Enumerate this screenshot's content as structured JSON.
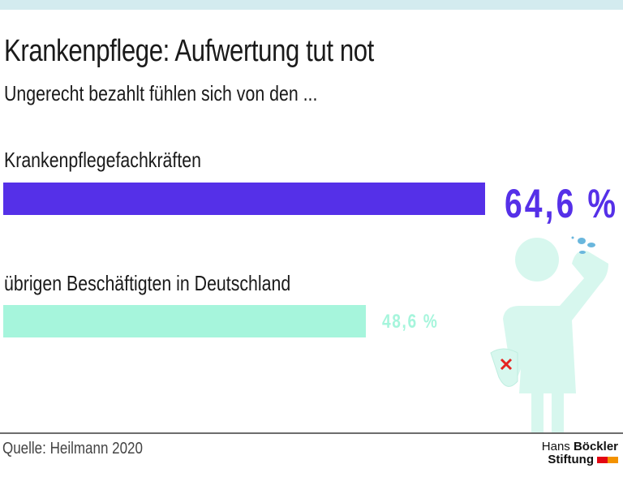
{
  "chart_data": {
    "type": "bar",
    "orientation": "horizontal",
    "title": "Krankenpflege: Aufwertung tut not",
    "subtitle": "Ungerecht bezahlt fühlen sich von den ...",
    "categories": [
      "Krankenpflegefachkräften",
      "übrigen Beschäftigten in Deutschland"
    ],
    "values": [
      64.6,
      48.6
    ],
    "value_labels": [
      "64,6 %",
      "48,6 %"
    ],
    "unit": "%",
    "colors": [
      "#5530e8",
      "#a6f5dc"
    ],
    "xlim": [
      0,
      100
    ],
    "grid": false
  },
  "source": "Quelle: Heilmann 2020",
  "logo": {
    "line1_light": "Hans",
    "line1_bold": "Böckler",
    "line2": "Stiftung"
  },
  "colors": {
    "top_stripe": "#d3ebef",
    "figure": "#d7f7ee",
    "cross": "#e52420",
    "drops": "#6ab7dd"
  },
  "illustration": "nurse-wiping-sweat-icon"
}
